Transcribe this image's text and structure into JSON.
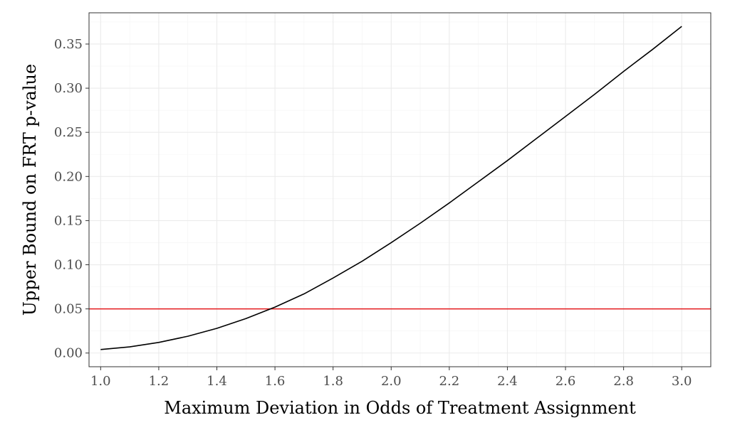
{
  "chart_data": {
    "type": "line",
    "title": "",
    "xlabel": "Maximum Deviation in Odds of Treatment Assignment",
    "ylabel": "Upper Bound on FRT p-value",
    "xlim": [
      0.96,
      3.1
    ],
    "ylim": [
      -0.0155,
      0.3854
    ],
    "x_ticks": [
      1.0,
      1.2,
      1.4,
      1.6,
      1.8,
      2.0,
      2.2,
      2.4,
      2.6,
      2.8,
      3.0
    ],
    "x_tick_labels": [
      "1.0",
      "1.2",
      "1.4",
      "1.6",
      "1.8",
      "2.0",
      "2.2",
      "2.4",
      "2.6",
      "2.8",
      "3.0"
    ],
    "y_ticks": [
      0.0,
      0.05,
      0.1,
      0.15,
      0.2,
      0.25,
      0.3,
      0.35
    ],
    "y_tick_labels": [
      "0.00",
      "0.05",
      "0.10",
      "0.15",
      "0.20",
      "0.25",
      "0.30",
      "0.35"
    ],
    "grid": true,
    "series": [
      {
        "color": "#000000",
        "x": [
          1.0,
          1.1,
          1.2,
          1.3,
          1.4,
          1.5,
          1.6,
          1.7,
          1.8,
          1.9,
          2.0,
          2.1,
          2.2,
          2.3,
          2.4,
          2.5,
          2.6,
          2.7,
          2.8,
          2.9,
          3.0
        ],
        "y": [
          0.004,
          0.007,
          0.012,
          0.019,
          0.028,
          0.039,
          0.052,
          0.067,
          0.085,
          0.104,
          0.125,
          0.147,
          0.17,
          0.194,
          0.218,
          0.243,
          0.268,
          0.293,
          0.319,
          0.344,
          0.37
        ]
      }
    ],
    "hlines": [
      {
        "y": 0.05,
        "color": "#e41a1c"
      }
    ]
  }
}
